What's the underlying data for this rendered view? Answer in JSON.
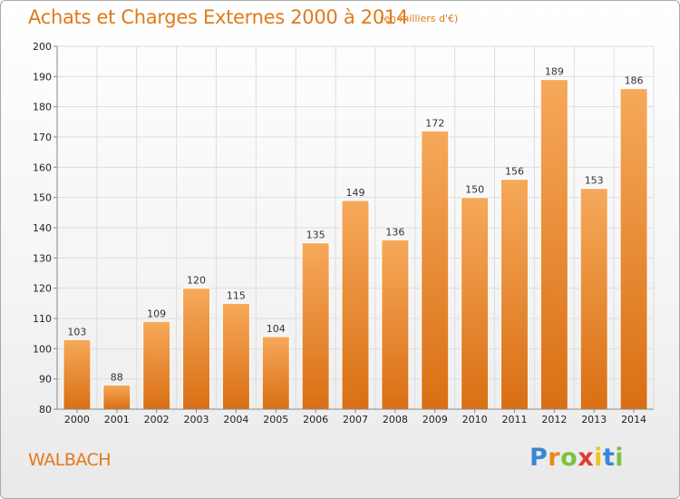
{
  "chart_data": {
    "type": "bar",
    "title": "Achats et Charges Externes 2000 à 2014",
    "subtitle": "(en milliers d'€)",
    "xlabel": "",
    "ylabel": "",
    "categories": [
      "2000",
      "2001",
      "2002",
      "2003",
      "2004",
      "2005",
      "2006",
      "2007",
      "2008",
      "2009",
      "2010",
      "2011",
      "2012",
      "2013",
      "2014"
    ],
    "values": [
      103,
      88,
      109,
      120,
      115,
      104,
      135,
      149,
      136,
      172,
      150,
      156,
      189,
      153,
      186
    ],
    "data_labels": [
      "103",
      "88",
      "109",
      "120",
      "115",
      "104",
      "135",
      "149",
      "136",
      "172",
      "150",
      "156",
      "189",
      "153",
      "186"
    ],
    "ylim": [
      80,
      200
    ],
    "yticks": [
      80,
      90,
      100,
      110,
      120,
      130,
      140,
      150,
      160,
      170,
      180,
      190,
      200
    ],
    "grid": true,
    "legend": "none",
    "colors": {
      "bar_light": "#f6a95a",
      "bar_dark": "#d96f14",
      "title": "#e07a1a",
      "grid": "#dddddd",
      "axis_text": "#222222"
    }
  },
  "footer": {
    "commune": "WALBACH",
    "logo_letters": [
      {
        "char": "P",
        "color": "#3a86d4"
      },
      {
        "char": "r",
        "color": "#e8891b"
      },
      {
        "char": "o",
        "color": "#7cc242"
      },
      {
        "char": "x",
        "color": "#e03c31"
      },
      {
        "char": "i",
        "color": "#f2c31b"
      },
      {
        "char": "t",
        "color": "#3a86d4"
      },
      {
        "char": "i",
        "color": "#7cc242"
      }
    ]
  }
}
